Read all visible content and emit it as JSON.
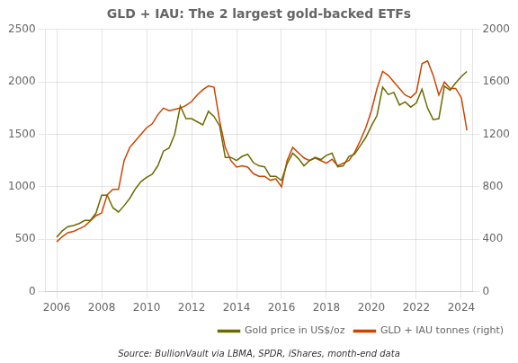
{
  "chart_data": {
    "type": "line",
    "title": "GLD + IAU: The 2 largest gold-backed ETFs",
    "annotation": "Source: BullionVault via LBMA, SPDR, iShares, month-end data",
    "x": [
      2006.0,
      2006.25,
      2006.5,
      2006.75,
      2007.0,
      2007.25,
      2007.5,
      2007.75,
      2008.0,
      2008.25,
      2008.5,
      2008.75,
      2009.0,
      2009.25,
      2009.5,
      2009.75,
      2010.0,
      2010.25,
      2010.5,
      2010.75,
      2011.0,
      2011.25,
      2011.5,
      2011.75,
      2012.0,
      2012.25,
      2012.5,
      2012.75,
      2013.0,
      2013.25,
      2013.5,
      2013.75,
      2014.0,
      2014.25,
      2014.5,
      2014.75,
      2015.0,
      2015.25,
      2015.5,
      2015.75,
      2016.0,
      2016.25,
      2016.5,
      2016.75,
      2017.0,
      2017.25,
      2017.5,
      2017.75,
      2018.0,
      2018.25,
      2018.5,
      2018.75,
      2019.0,
      2019.25,
      2019.5,
      2019.75,
      2020.0,
      2020.25,
      2020.5,
      2020.75,
      2021.0,
      2021.25,
      2021.5,
      2021.75,
      2022.0,
      2022.25,
      2022.5,
      2022.75,
      2023.0,
      2023.25,
      2023.5,
      2023.75,
      2024.0,
      2024.25
    ],
    "xlim": [
      2005.5,
      2024.5
    ],
    "xticks": [
      2006,
      2008,
      2010,
      2012,
      2014,
      2016,
      2018,
      2020,
      2022,
      2024
    ],
    "ylim": [
      0,
      2500
    ],
    "yticks": [
      0,
      500,
      1000,
      1500,
      2000,
      2500
    ],
    "y2lim": [
      0,
      2000
    ],
    "y2ticks": [
      0,
      400,
      800,
      1200,
      1600,
      2000
    ],
    "grid": true,
    "legend": "lower right",
    "series": [
      {
        "name": "Gold price in US$/oz",
        "color": "#6b6b00",
        "values": [
          520,
          580,
          620,
          630,
          650,
          680,
          680,
          750,
          920,
          920,
          800,
          760,
          820,
          890,
          980,
          1050,
          1090,
          1120,
          1200,
          1340,
          1370,
          1500,
          1770,
          1650,
          1650,
          1620,
          1590,
          1720,
          1670,
          1580,
          1280,
          1280,
          1250,
          1290,
          1310,
          1230,
          1200,
          1190,
          1100,
          1100,
          1060,
          1220,
          1320,
          1270,
          1200,
          1250,
          1280,
          1260,
          1300,
          1320,
          1190,
          1200,
          1290,
          1310,
          1390,
          1470,
          1580,
          1680,
          1950,
          1880,
          1900,
          1780,
          1810,
          1760,
          1800,
          1930,
          1750,
          1640,
          1650,
          1960,
          1920,
          1990,
          2050,
          2100
        ]
      },
      {
        "name": "GLD + IAU tonnes (right)",
        "color": "#cc4400",
        "axis": "y2",
        "values": [
          380,
          420,
          450,
          460,
          480,
          500,
          540,
          580,
          600,
          740,
          780,
          780,
          1000,
          1100,
          1150,
          1200,
          1250,
          1280,
          1350,
          1400,
          1380,
          1390,
          1400,
          1420,
          1450,
          1500,
          1540,
          1570,
          1560,
          1300,
          1100,
          1000,
          950,
          960,
          950,
          900,
          880,
          880,
          850,
          860,
          800,
          1000,
          1100,
          1060,
          1020,
          1000,
          1020,
          1000,
          980,
          1010,
          960,
          980,
          1000,
          1060,
          1150,
          1250,
          1380,
          1550,
          1680,
          1650,
          1600,
          1550,
          1500,
          1480,
          1520,
          1740,
          1760,
          1650,
          1500,
          1600,
          1550,
          1550,
          1480,
          1230
        ]
      }
    ]
  }
}
